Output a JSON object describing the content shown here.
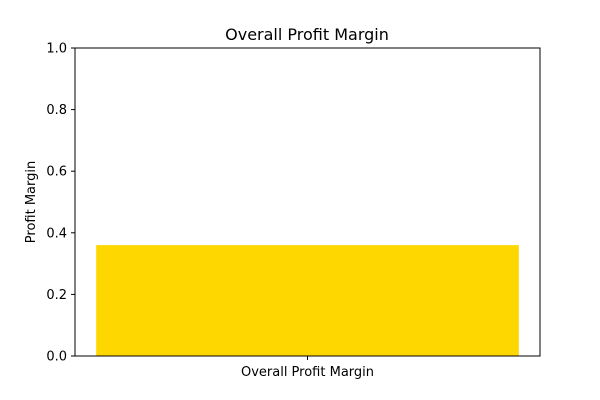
{
  "chart_data": {
    "type": "bar",
    "title": "Overall Profit Margin",
    "xlabel": "",
    "ylabel": "Profit Margin",
    "categories": [
      "Overall Profit Margin"
    ],
    "values": [
      0.36
    ],
    "ylim": [
      0,
      1.0
    ],
    "yticks": [
      "0.0",
      "0.2",
      "0.4",
      "0.6",
      "0.8",
      "1.0"
    ],
    "grid": false,
    "legend": "none",
    "colors": {
      "bar": "#FFD700",
      "axis": "#000000",
      "background": "#FFFFFF"
    }
  }
}
